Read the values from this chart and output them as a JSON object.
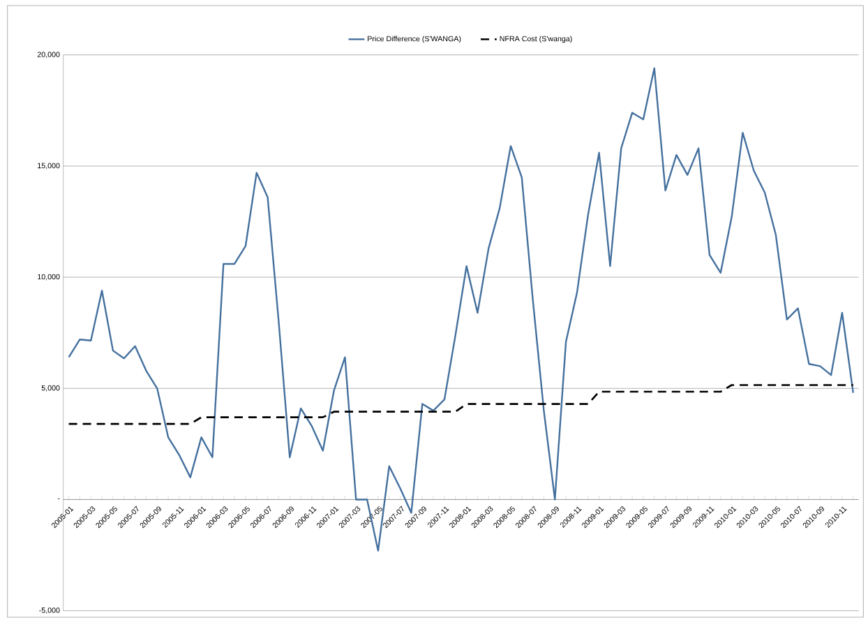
{
  "chart_data": {
    "type": "line",
    "categories": [
      "2005-01",
      null,
      "2005-03",
      null,
      "2005-05",
      null,
      "2005-07",
      null,
      "2005-09",
      null,
      "2005-11",
      null,
      "2006-01",
      null,
      "2006-03",
      null,
      "2006-05",
      null,
      "2006-07",
      null,
      "2006-09",
      null,
      "2006-11",
      null,
      "2007-01",
      null,
      "2007-03",
      null,
      "2007-05",
      null,
      "2007-07",
      null,
      "2007-09",
      null,
      "2007-11",
      null,
      "2008-01",
      null,
      "2008-03",
      null,
      "2008-05",
      null,
      "2008-07",
      null,
      "2008-09",
      null,
      "2008-11",
      null,
      "2009-01",
      null,
      "2009-03",
      null,
      "2009-05",
      null,
      "2009-07",
      null,
      "2009-09",
      null,
      "2009-11",
      null,
      "2010-01",
      null,
      "2010-03",
      null,
      "2010-05",
      null,
      "2010-07",
      null,
      "2010-09",
      null,
      "2010-11",
      null
    ],
    "series": [
      {
        "name": "Price Difference (S'WANGA)",
        "color": "#44709e",
        "line_style": "solid",
        "values": [
          6400,
          7200,
          7150,
          9400,
          6700,
          6350,
          6900,
          5800,
          5000,
          2800,
          2000,
          1000,
          2800,
          1900,
          10600,
          10600,
          11400,
          14700,
          13600,
          8000,
          1900,
          4100,
          3300,
          2200,
          4900,
          6400,
          0,
          0,
          -2300,
          1500,
          500,
          -600,
          4300,
          4000,
          4500,
          7400,
          10500,
          8400,
          11300,
          13100,
          15900,
          14500,
          9000,
          4000,
          0,
          7100,
          9300,
          12800,
          15600,
          10500,
          15800,
          17400,
          17100,
          19400,
          13900,
          15500,
          14600,
          15800,
          11000,
          10200,
          12700,
          16500,
          14800,
          13800,
          11900,
          8100,
          8600,
          6100,
          6000,
          5600,
          8400,
          4800
        ]
      },
      {
        "name": "NFRA Cost (S'wanga)",
        "color": "#000000",
        "line_style": "dashed",
        "values": [
          3400,
          3400,
          3400,
          3400,
          3400,
          3400,
          3400,
          3400,
          3400,
          3400,
          3400,
          3400,
          3700,
          3700,
          3700,
          3700,
          3700,
          3700,
          3700,
          3700,
          3700,
          3700,
          3700,
          3700,
          3950,
          3950,
          3950,
          3950,
          3950,
          3950,
          3950,
          3950,
          3950,
          3950,
          3950,
          3950,
          4300,
          4300,
          4300,
          4300,
          4300,
          4300,
          4300,
          4300,
          4300,
          4300,
          4300,
          4300,
          4850,
          4850,
          4850,
          4850,
          4850,
          4850,
          4850,
          4850,
          4850,
          4850,
          4850,
          4850,
          5150,
          5150,
          5150,
          5150,
          5150,
          5150,
          5150,
          5150,
          5150,
          5150,
          5150,
          5150
        ]
      }
    ],
    "ylim": [
      -5000,
      20000
    ],
    "yticks": [
      {
        "value": -5000,
        "label": "-5,000"
      },
      {
        "value": 0,
        "label": "-"
      },
      {
        "value": 5000,
        "label": "5,000"
      },
      {
        "value": 10000,
        "label": "10,000"
      },
      {
        "value": 15000,
        "label": "15,000"
      },
      {
        "value": 20000,
        "label": "20,000"
      }
    ],
    "grid": "y",
    "legend": "top",
    "marker": "none"
  }
}
